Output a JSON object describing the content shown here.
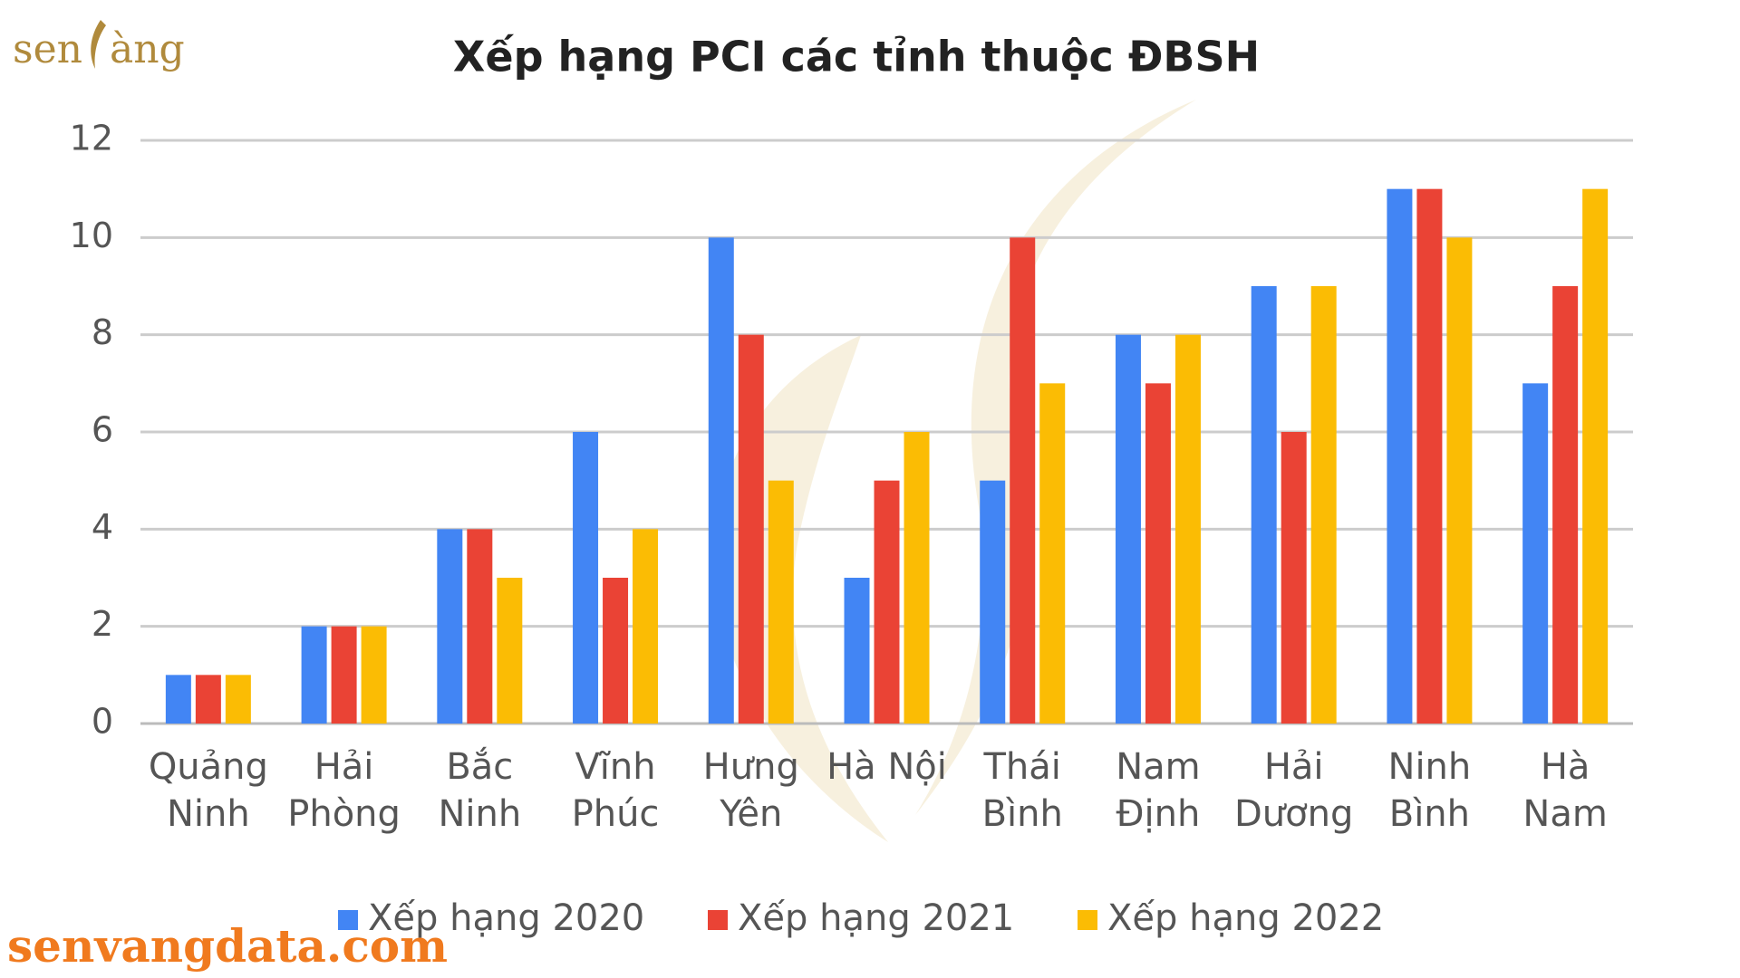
{
  "logo": {
    "left": "sen",
    "right": "àng"
  },
  "footer": "senvangdata.com",
  "chart_data": {
    "type": "bar",
    "title": "Xếp hạng PCI các tỉnh thuộc ĐBSH",
    "categories": [
      "Quảng Ninh",
      "Hải Phòng",
      "Bắc Ninh",
      "Vĩnh Phúc",
      "Hưng Yên",
      "Hà Nội",
      "Thái Bình",
      "Nam Định",
      "Hải Dương",
      "Ninh Bình",
      "Hà Nam"
    ],
    "series": [
      {
        "name": "Xếp hạng 2020",
        "color": "#4285f4",
        "values": [
          1,
          2,
          4,
          6,
          10,
          3,
          5,
          8,
          9,
          11,
          7
        ]
      },
      {
        "name": "Xếp hạng 2021",
        "color": "#ea4335",
        "values": [
          1,
          2,
          4,
          3,
          8,
          5,
          10,
          7,
          6,
          11,
          9
        ]
      },
      {
        "name": "Xếp hạng 2022",
        "color": "#fbbc04",
        "values": [
          1,
          2,
          3,
          4,
          5,
          6,
          7,
          8,
          9,
          10,
          11
        ]
      }
    ],
    "ylim": [
      0,
      12
    ],
    "yticks": [
      0,
      2,
      4,
      6,
      8,
      10,
      12
    ],
    "grid": true,
    "legend": "bottom"
  }
}
